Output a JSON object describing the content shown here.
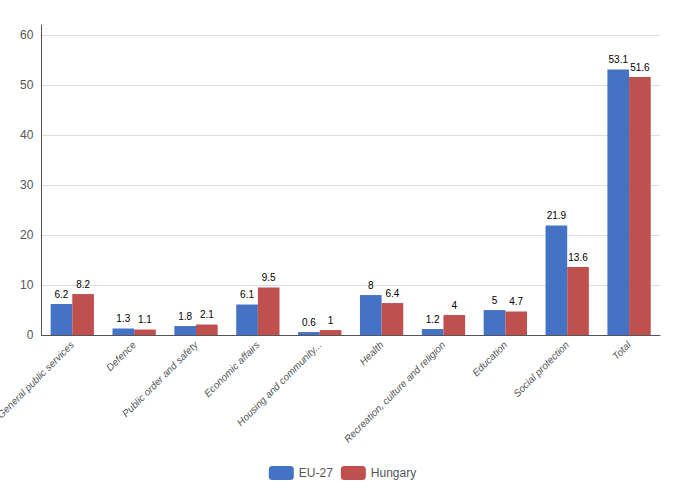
{
  "chart_data": {
    "type": "bar",
    "categories": [
      "General public services",
      "Defence",
      "Public order and safety",
      "Economic affairs",
      "Housing and community...",
      "Health",
      "Recreation, culture and religion",
      "Education",
      "Social protection",
      "Total"
    ],
    "series": [
      {
        "name": "EU-27",
        "color": "#4472C4",
        "values": [
          6.2,
          1.3,
          1.8,
          6.1,
          0.6,
          8,
          1.2,
          5,
          21.9,
          53.1
        ]
      },
      {
        "name": "Hungary",
        "color": "#C0504D",
        "values": [
          8.2,
          1.1,
          2.1,
          9.5,
          1,
          6.4,
          4,
          4.7,
          13.6,
          51.6
        ]
      }
    ],
    "ylim": [
      0,
      62
    ],
    "yticks": [
      0,
      10,
      20,
      30,
      40,
      50,
      60
    ],
    "grid": true,
    "legend": "bottom",
    "data_labels": true
  }
}
